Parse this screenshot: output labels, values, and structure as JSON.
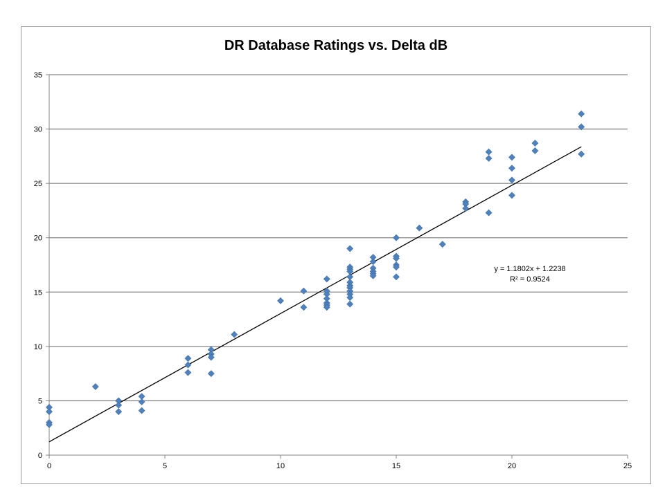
{
  "chart_data": {
    "type": "scatter",
    "title": "DR Database Ratings vs. Delta dB",
    "xlabel": "",
    "ylabel": "",
    "xlim": [
      0,
      25
    ],
    "ylim": [
      0,
      35
    ],
    "x_ticks": [
      0,
      5,
      10,
      15,
      20,
      25
    ],
    "y_ticks": [
      0,
      5,
      10,
      15,
      20,
      25,
      30,
      35
    ],
    "grid": "horizontal",
    "marker_color": "#4f81bd",
    "trendline": {
      "type": "linear",
      "slope": 1.1802,
      "intercept": 1.2238,
      "color": "#000000",
      "x_range": [
        0,
        23
      ]
    },
    "equation_text": "y = 1.1802x + 1.2238",
    "r2_text": "R² = 0.9524",
    "points": [
      [
        0,
        4.4
      ],
      [
        0,
        4.0
      ],
      [
        0,
        3.0
      ],
      [
        0,
        2.8
      ],
      [
        2,
        6.3
      ],
      [
        3,
        5.0
      ],
      [
        3,
        4.6
      ],
      [
        3,
        4.0
      ],
      [
        4,
        5.4
      ],
      [
        4,
        4.9
      ],
      [
        4,
        4.1
      ],
      [
        6,
        8.9
      ],
      [
        6,
        8.3
      ],
      [
        6,
        7.6
      ],
      [
        7,
        9.7
      ],
      [
        7,
        9.3
      ],
      [
        7,
        9.0
      ],
      [
        7,
        7.5
      ],
      [
        8,
        11.1
      ],
      [
        10,
        14.2
      ],
      [
        11,
        15.1
      ],
      [
        11,
        13.6
      ],
      [
        12,
        16.2
      ],
      [
        12,
        15.1
      ],
      [
        12,
        14.8
      ],
      [
        12,
        14.4
      ],
      [
        12,
        14.0
      ],
      [
        12,
        13.8
      ],
      [
        12,
        13.6
      ],
      [
        13,
        19.0
      ],
      [
        13,
        17.3
      ],
      [
        13,
        17.1
      ],
      [
        13,
        16.9
      ],
      [
        13,
        16.4
      ],
      [
        13,
        15.9
      ],
      [
        13,
        15.6
      ],
      [
        13,
        15.4
      ],
      [
        13,
        15.1
      ],
      [
        13,
        14.8
      ],
      [
        13,
        14.5
      ],
      [
        13,
        13.9
      ],
      [
        14,
        18.2
      ],
      [
        14,
        17.8
      ],
      [
        14,
        17.2
      ],
      [
        14,
        16.9
      ],
      [
        14,
        16.7
      ],
      [
        14,
        16.5
      ],
      [
        15,
        20.0
      ],
      [
        15,
        18.3
      ],
      [
        15,
        18.1
      ],
      [
        15,
        17.5
      ],
      [
        15,
        17.3
      ],
      [
        15,
        16.4
      ],
      [
        16,
        20.9
      ],
      [
        17,
        19.4
      ],
      [
        18,
        23.3
      ],
      [
        18,
        23.1
      ],
      [
        18,
        22.7
      ],
      [
        19,
        27.9
      ],
      [
        19,
        27.3
      ],
      [
        19,
        22.3
      ],
      [
        20,
        27.4
      ],
      [
        20,
        26.4
      ],
      [
        20,
        25.3
      ],
      [
        20,
        23.9
      ],
      [
        21,
        28.7
      ],
      [
        21,
        28.0
      ],
      [
        23,
        31.4
      ],
      [
        23,
        30.2
      ],
      [
        23,
        27.7
      ]
    ]
  }
}
